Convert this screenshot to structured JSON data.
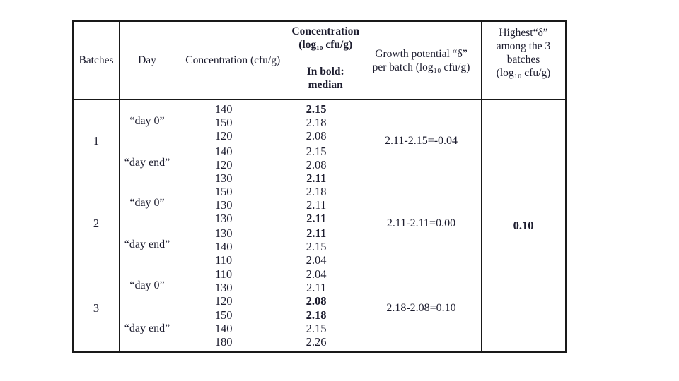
{
  "page": {
    "background": "#ffffff",
    "text_color": "#1c1c2e",
    "border_color": "#191919"
  },
  "table": {
    "header": {
      "batches": "Batches",
      "day": "Day",
      "concentration": "Concentration (cfu/g)",
      "concentration_log_line1": "Concentration",
      "concentration_log_line2": "(log₁₀ cfu/g)",
      "concentration_log_note1": "In bold:",
      "concentration_log_note2": "median",
      "growth_line1": "Growth potential “δ”",
      "growth_line2": "per batch (log₁₀ cfu/g)",
      "highest_line1": "Highest“δ”",
      "highest_line2": "among the 3",
      "highest_line3": "batches",
      "highest_line4": "(log₁₀ cfu/g)"
    },
    "batches": [
      {
        "id": "1",
        "day0": {
          "label": "“day 0”",
          "rows": [
            {
              "cfu": "140",
              "log": "2.15",
              "median": true
            },
            {
              "cfu": "150",
              "log": "2.18",
              "median": false
            },
            {
              "cfu": "120",
              "log": "2.08",
              "median": false
            }
          ]
        },
        "dayend": {
          "label": "“day end”",
          "rows": [
            {
              "cfu": "140",
              "log": "2.15",
              "median": false
            },
            {
              "cfu": "120",
              "log": "2.08",
              "median": false
            },
            {
              "cfu": "130",
              "log": "2.11",
              "median": true
            }
          ]
        },
        "growth": "2.11-2.15=-0.04"
      },
      {
        "id": "2",
        "day0": {
          "label": "“day 0”",
          "rows": [
            {
              "cfu": "150",
              "log": "2.18",
              "median": false
            },
            {
              "cfu": "130",
              "log": "2.11",
              "median": false
            },
            {
              "cfu": "130",
              "log": "2.11",
              "median": true
            }
          ]
        },
        "dayend": {
          "label": "“day end”",
          "rows": [
            {
              "cfu": "130",
              "log": "2.11",
              "median": true
            },
            {
              "cfu": "140",
              "log": "2.15",
              "median": false
            },
            {
              "cfu": "110",
              "log": "2.04",
              "median": false
            }
          ]
        },
        "growth": "2.11-2.11=0.00"
      },
      {
        "id": "3",
        "day0": {
          "label": "“day 0”",
          "rows": [
            {
              "cfu": "110",
              "log": "2.04",
              "median": false
            },
            {
              "cfu": "130",
              "log": "2.11",
              "median": false
            },
            {
              "cfu": "120",
              "log": "2.08",
              "median": true
            }
          ]
        },
        "dayend": {
          "label": "“day end”",
          "rows": [
            {
              "cfu": "150",
              "log": "2.18",
              "median": true
            },
            {
              "cfu": "140",
              "log": "2.15",
              "median": false
            },
            {
              "cfu": "180",
              "log": "2.26",
              "median": false
            }
          ]
        },
        "growth": "2.18-2.08=0.10"
      }
    ],
    "highest_value": "0.10"
  }
}
